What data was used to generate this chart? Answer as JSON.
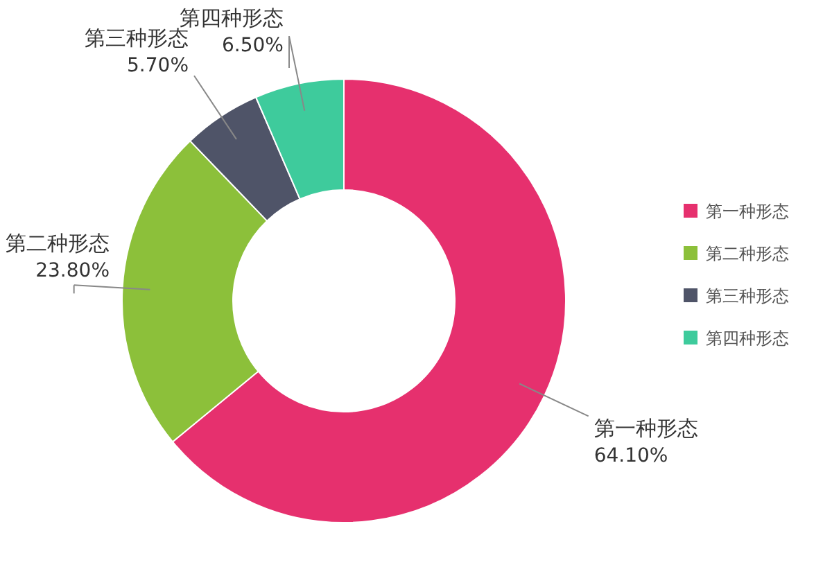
{
  "chart_data": {
    "type": "donut",
    "categories": [
      "第一种形态",
      "第二种形态",
      "第三种形态",
      "第四种形态"
    ],
    "values": [
      64.1,
      23.8,
      5.7,
      6.5
    ],
    "colors": [
      "#e6306e",
      "#8cc03a",
      "#4f5468",
      "#3ecb9c"
    ],
    "value_labels": [
      "64.10%",
      "23.80%",
      "5.70%",
      "6.50%"
    ],
    "legend": "right"
  }
}
